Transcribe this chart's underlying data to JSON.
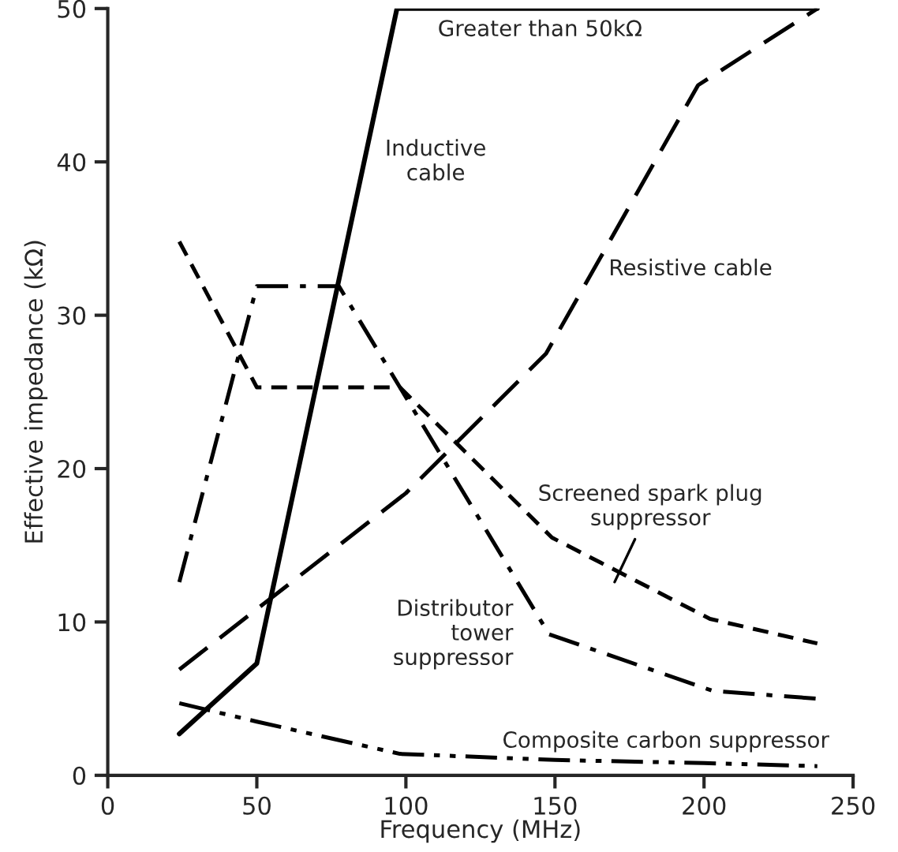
{
  "chart_data": {
    "type": "line",
    "xlabel": "Frequency (MHz)",
    "ylabel": "Effective impedance (kΩ)",
    "xlim": [
      0,
      250
    ],
    "xticks": [
      0,
      50,
      100,
      150,
      200,
      250
    ],
    "ylim": [
      0,
      50
    ],
    "yticks": [
      0,
      10,
      20,
      30,
      40,
      50
    ],
    "grid": false,
    "legend": false,
    "marker": "none",
    "series": [
      {
        "name": "Inductive\ncable",
        "color": "#000000",
        "line_style": "solid",
        "x": [
          24,
          50,
          97,
          238
        ],
        "values": [
          2.7,
          7.3,
          50,
          50
        ]
      },
      {
        "name": "Resistive cable",
        "color": "#000000",
        "line_style": "long_dash",
        "x": [
          24,
          100,
          147,
          198,
          238
        ],
        "values": [
          6.9,
          18.4,
          27.5,
          45,
          50
        ]
      },
      {
        "name": "Screened spark plug\nsuppressor",
        "color": "#000000",
        "line_style": "short_dash",
        "x": [
          24,
          50,
          98,
          149,
          202,
          238
        ],
        "values": [
          34.8,
          25.3,
          25.3,
          15.5,
          10.2,
          8.6
        ]
      },
      {
        "name": "Distributor\ntower\nsuppressor",
        "color": "#000000",
        "line_style": "dash_dot",
        "x": [
          24,
          50,
          77.5,
          148,
          203,
          238
        ],
        "values": [
          12.6,
          31.9,
          31.9,
          9.2,
          5.5,
          5.0
        ]
      },
      {
        "name": "Composite carbon suppressor",
        "color": "#000000",
        "line_style": "dash_dot_dot",
        "x": [
          24,
          50,
          98,
          150,
          200,
          238
        ],
        "values": [
          4.7,
          3.5,
          1.4,
          1.0,
          0.8,
          0.6
        ]
      }
    ],
    "annotations": [
      {
        "text": "Greater than 50kΩ",
        "x": 145,
        "y": 50
      }
    ]
  }
}
